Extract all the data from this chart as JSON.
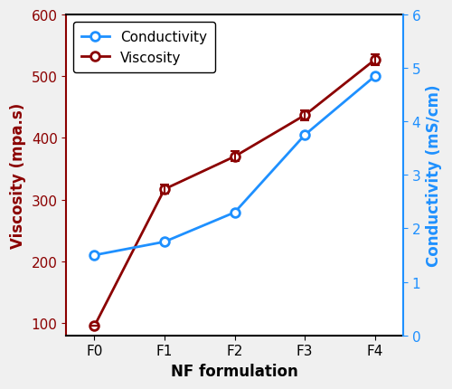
{
  "x_labels": [
    "F0",
    "F1",
    "F2",
    "F3",
    "F4"
  ],
  "x_values": [
    0,
    1,
    2,
    3,
    4
  ],
  "conductivity": [
    1.5,
    1.75,
    2.3,
    3.75,
    4.85
  ],
  "viscosity": [
    95,
    317,
    370,
    437,
    527
  ],
  "viscosity_errors": [
    0,
    7,
    8,
    8,
    9
  ],
  "conductivity_color": "#1E90FF",
  "viscosity_color": "#8B0000",
  "left_ylabel": "Viscosity (mpa.s)",
  "right_ylabel": "Conductivity (mS/cm)",
  "xlabel": "NF formulation",
  "legend_conductivity": "Conductivity",
  "legend_viscosity": "Viscosity",
  "left_ylim": [
    80,
    600
  ],
  "right_ylim": [
    0,
    6
  ],
  "left_yticks": [
    100,
    200,
    300,
    400,
    500,
    600
  ],
  "right_yticks": [
    0,
    1,
    2,
    3,
    4,
    5,
    6
  ],
  "marker_size": 7,
  "linewidth": 2,
  "label_fontsize": 12,
  "tick_fontsize": 11,
  "legend_fontsize": 11,
  "figsize": [
    5.0,
    4.31
  ],
  "dpi": 100
}
